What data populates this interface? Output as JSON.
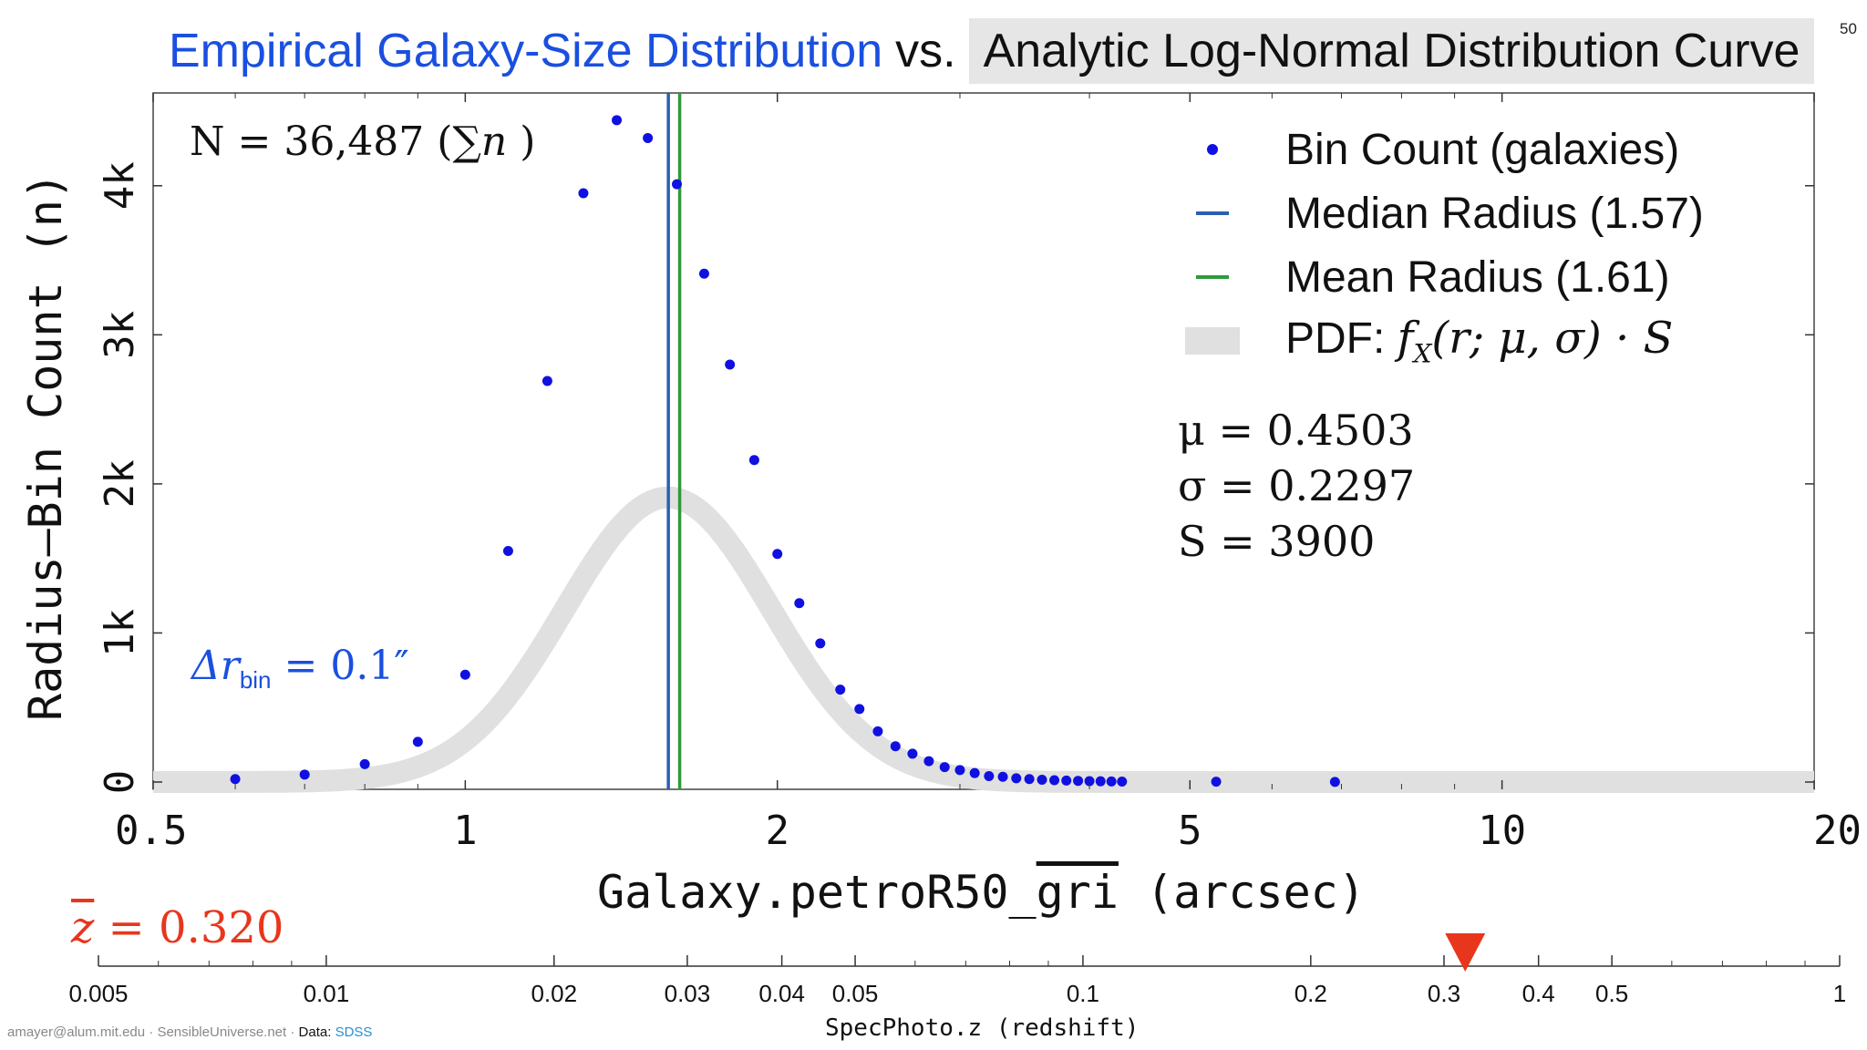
{
  "title": {
    "part1": "Empirical Galaxy-Size Distribution",
    "part2": "vs.",
    "part3": "Analytic Log-Normal Distribution Curve"
  },
  "page_number": "50",
  "colors": {
    "points": "#1010e0",
    "median_line": "#2a5fb0",
    "mean_line": "#2f9a3a",
    "pdf_band": "#e0e0e0",
    "title_blue": "#1a4fe0",
    "zbar_red": "#e8361c"
  },
  "annotations": {
    "n_total": "N = 36,487 (",
    "n_sum": "∑",
    "n_var": "n",
    "n_close": ")",
    "delta_r": "Δr",
    "delta_r_sub": "bin",
    "delta_r_value": " = 0.1″"
  },
  "legend": {
    "bin_count": "Bin Count (galaxies)",
    "median": "Median Radius (1.57)",
    "mean": "Mean Radius (1.61)",
    "pdf_prefix": "PDF:  ",
    "pdf_formula": "f",
    "pdf_sub": "X",
    "pdf_args": "(r; μ, σ) · S"
  },
  "params": {
    "mu": "μ = 0.4503",
    "sigma": "σ = 0.2297",
    "S": "S = 3900"
  },
  "axes": {
    "ylabel": "Radius–Bin Count (n)",
    "xlabel_pre": "Galaxy.petroR50_",
    "xlabel_over": "gri",
    "xlabel_post": " (arcsec)",
    "zlabel": "SpecPhoto.z (redshift)",
    "zbar_symbol": "z",
    "zbar_value": " = 0.320"
  },
  "footer": {
    "author": "amayer@alum.mit.edu · SensibleUniverse.net · ",
    "data_label": "Data: ",
    "data_source": "SDSS"
  },
  "chart_data": {
    "type": "scatter",
    "x_scale": "log",
    "xlim": [
      0.5,
      20
    ],
    "ylim": [
      0,
      4500
    ],
    "x_ticks": [
      0.5,
      1,
      2,
      5,
      10,
      20
    ],
    "x_tick_labels": [
      "0.5",
      "1",
      "2",
      "5",
      "10",
      "20"
    ],
    "y_ticks": [
      0,
      1000,
      2000,
      3000,
      4000
    ],
    "y_tick_labels": [
      "0",
      "1k",
      "2k",
      "3k",
      "4k"
    ],
    "series": [
      {
        "name": "Bin Count (galaxies)",
        "x": [
          0.6,
          0.7,
          0.8,
          0.9,
          1.0,
          1.1,
          1.2,
          1.3,
          1.4,
          1.5,
          1.6,
          1.7,
          1.8,
          1.9,
          2.0,
          2.1,
          2.2,
          2.3,
          2.4,
          2.5,
          2.6,
          2.7,
          2.8,
          2.9,
          3.0,
          3.1,
          3.2,
          3.3,
          3.4,
          3.5,
          3.6,
          3.7,
          3.8,
          3.9,
          4.0,
          4.1,
          4.2,
          4.3,
          5.3,
          6.9
        ],
        "y": [
          20,
          50,
          120,
          270,
          720,
          1550,
          2690,
          3950,
          4440,
          4320,
          4010,
          3410,
          2800,
          2160,
          1530,
          1200,
          930,
          620,
          490,
          340,
          240,
          190,
          140,
          100,
          80,
          60,
          40,
          35,
          25,
          20,
          15,
          12,
          10,
          8,
          6,
          5,
          4,
          3,
          2,
          1
        ]
      }
    ],
    "vertical_lines": [
      {
        "name": "Median Radius (1.57)",
        "x": 1.57
      },
      {
        "name": "Mean Radius (1.61)",
        "x": 1.61
      }
    ],
    "pdf": {
      "name": "PDF: f_X(r; μ, σ) · S",
      "mu": 0.4503,
      "sigma": 0.2297,
      "S": 3900
    },
    "secondary_axis": {
      "label": "SpecPhoto.z (redshift)",
      "scale": "log",
      "xlim": [
        0.005,
        1
      ],
      "ticks": [
        0.005,
        0.01,
        0.02,
        0.03,
        0.04,
        0.05,
        0.1,
        0.2,
        0.3,
        0.4,
        0.5,
        1
      ],
      "tick_labels": [
        "0.005",
        "0.01",
        "0.02",
        "0.03",
        "0.04",
        "0.05",
        "0.1",
        "0.2",
        "0.3",
        "0.4",
        "0.5",
        "1"
      ],
      "marker_z": 0.32
    }
  }
}
